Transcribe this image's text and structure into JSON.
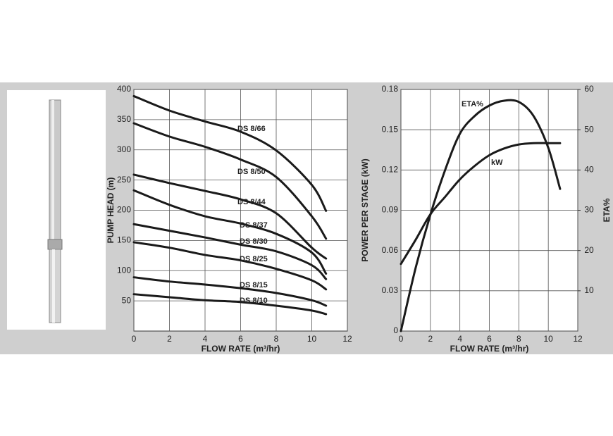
{
  "chart_data": [
    {
      "type": "line",
      "x_label": "FLOW RATE (m³/hr)",
      "y_label": "PUMP HEAD (m)",
      "xlim": [
        0,
        12
      ],
      "xticks": [
        0,
        2,
        4,
        6,
        8,
        10,
        12
      ],
      "ylim": [
        0,
        400
      ],
      "yticks": [
        50,
        100,
        150,
        200,
        250,
        300,
        350,
        400
      ],
      "grid": true,
      "x": [
        0,
        2,
        4,
        6,
        8,
        10,
        10.8
      ],
      "series": [
        {
          "name": "DS 8/66",
          "color": "#1a1a1a",
          "values": [
            389,
            365,
            347,
            330,
            299,
            242,
            199
          ]
        },
        {
          "name": "DS 8/50",
          "color": "#1a1a1a",
          "values": [
            344,
            322,
            305,
            284,
            255,
            190,
            153
          ]
        },
        {
          "name": "DS 8/44",
          "color": "#1a1a1a",
          "values": [
            259,
            245,
            232,
            218,
            195,
            138,
            120
          ]
        },
        {
          "name": "DS 8/37",
          "color": "#1a1a1a",
          "values": [
            233,
            209,
            190,
            178,
            161,
            130,
            95
          ]
        },
        {
          "name": "DS 8/30",
          "color": "#1a1a1a",
          "values": [
            177,
            166,
            155,
            143,
            132,
            109,
            86
          ]
        },
        {
          "name": "DS 8/25",
          "color": "#1a1a1a",
          "values": [
            147,
            138,
            126,
            117,
            103,
            84,
            69
          ]
        },
        {
          "name": "DS 8/15",
          "color": "#1a1a1a",
          "values": [
            89,
            82,
            77,
            71,
            63,
            51,
            42
          ]
        },
        {
          "name": "DS 8/10",
          "color": "#1a1a1a",
          "values": [
            61,
            56,
            51,
            48,
            42,
            34,
            28
          ]
        }
      ]
    },
    {
      "type": "line",
      "x_label": "FLOW RATE (m³/hr)",
      "y_label": "POWER PER STAGE (kW)",
      "y2_label": "ETA%",
      "xlim": [
        0,
        12
      ],
      "xticks": [
        0,
        2,
        4,
        6,
        8,
        10,
        12
      ],
      "ylim": [
        0,
        0.18
      ],
      "yticks": [
        0,
        0.03,
        0.06,
        0.09,
        0.12,
        0.15,
        0.18
      ],
      "y2lim": [
        0,
        60
      ],
      "y2ticks": [
        10,
        20,
        30,
        40,
        50,
        60
      ],
      "grid": true,
      "x": [
        0,
        1,
        2,
        3,
        4,
        5,
        6,
        7,
        8,
        9,
        10,
        10.8
      ],
      "series": [
        {
          "name": "ETA%",
          "color": "#1a1a1a",
          "axis": "y2",
          "values": [
            0,
            15.7,
            28.9,
            40,
            49,
            53.4,
            56,
            57.2,
            56.9,
            53.4,
            45.5,
            35.3
          ]
        },
        {
          "name": "kW",
          "color": "#1a1a1a",
          "values": [
            0.05,
            0.068,
            0.087,
            0.1,
            0.113,
            0.123,
            0.131,
            0.136,
            0.139,
            0.14,
            0.14,
            0.14
          ]
        }
      ]
    }
  ]
}
